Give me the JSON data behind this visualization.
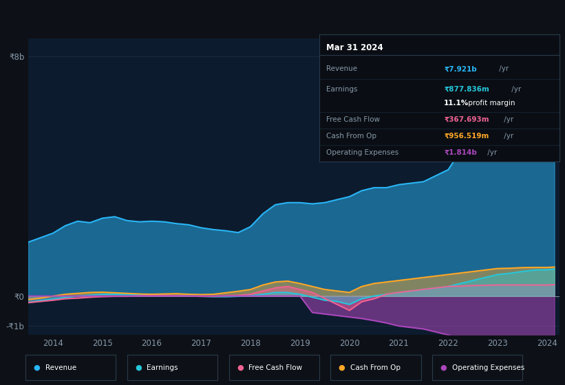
{
  "background_color": "#0d1117",
  "chart_bg_color": "#0d1b2e",
  "tooltip": {
    "date": "Mar 31 2024",
    "revenue_label": "Revenue",
    "revenue_val": "₹7.921b",
    "revenue_unit": " /yr",
    "earnings_label": "Earnings",
    "earnings_val": "₹877.836m",
    "earnings_unit": " /yr",
    "margin_val": "11.1%",
    "margin_text": " profit margin",
    "fcf_label": "Free Cash Flow",
    "fcf_val": "₹367.693m",
    "fcf_unit": " /yr",
    "cfop_label": "Cash From Op",
    "cfop_val": "₹956.519m",
    "cfop_unit": " /yr",
    "opex_label": "Operating Expenses",
    "opex_val": "₹1.814b",
    "opex_unit": " /yr"
  },
  "years": [
    2013.5,
    2013.75,
    2014.0,
    2014.25,
    2014.5,
    2014.75,
    2015.0,
    2015.25,
    2015.5,
    2015.75,
    2016.0,
    2016.25,
    2016.5,
    2016.75,
    2017.0,
    2017.25,
    2017.5,
    2017.75,
    2018.0,
    2018.25,
    2018.5,
    2018.75,
    2019.0,
    2019.25,
    2019.5,
    2019.75,
    2020.0,
    2020.25,
    2020.5,
    2020.75,
    2021.0,
    2021.25,
    2021.5,
    2021.75,
    2022.0,
    2022.25,
    2022.5,
    2022.75,
    2023.0,
    2023.25,
    2023.5,
    2023.75,
    2024.0,
    2024.15
  ],
  "revenue": [
    1.8,
    1.95,
    2.1,
    2.35,
    2.5,
    2.45,
    2.6,
    2.65,
    2.52,
    2.48,
    2.5,
    2.48,
    2.42,
    2.38,
    2.28,
    2.22,
    2.18,
    2.12,
    2.32,
    2.75,
    3.05,
    3.12,
    3.12,
    3.08,
    3.12,
    3.22,
    3.32,
    3.52,
    3.62,
    3.62,
    3.72,
    3.77,
    3.82,
    4.02,
    4.22,
    4.85,
    5.55,
    6.05,
    6.82,
    7.02,
    7.32,
    7.62,
    7.921,
    8.15
  ],
  "earnings": [
    -0.22,
    -0.15,
    -0.1,
    -0.05,
    0.0,
    0.03,
    0.06,
    0.06,
    0.05,
    0.04,
    0.03,
    0.02,
    0.01,
    0.0,
    -0.01,
    -0.02,
    -0.02,
    -0.01,
    0.01,
    0.06,
    0.12,
    0.12,
    0.06,
    -0.04,
    -0.14,
    -0.18,
    -0.28,
    -0.09,
    0.0,
    0.06,
    0.12,
    0.17,
    0.22,
    0.27,
    0.32,
    0.42,
    0.52,
    0.62,
    0.72,
    0.76,
    0.82,
    0.87,
    0.877836,
    0.9
  ],
  "free_cash_flow": [
    -0.22,
    -0.18,
    -0.14,
    -0.09,
    -0.07,
    -0.04,
    -0.02,
    -0.01,
    -0.01,
    0.01,
    0.02,
    0.02,
    0.01,
    0.0,
    -0.01,
    -0.01,
    0.01,
    0.02,
    0.06,
    0.17,
    0.27,
    0.32,
    0.22,
    0.12,
    -0.08,
    -0.28,
    -0.48,
    -0.19,
    -0.09,
    0.06,
    0.12,
    0.17,
    0.22,
    0.27,
    0.32,
    0.33,
    0.35,
    0.36,
    0.37,
    0.37,
    0.37,
    0.367693,
    0.367693,
    0.38
  ],
  "cash_from_op": [
    -0.12,
    -0.07,
    0.0,
    0.06,
    0.09,
    0.12,
    0.13,
    0.11,
    0.09,
    0.07,
    0.06,
    0.07,
    0.08,
    0.06,
    0.05,
    0.06,
    0.11,
    0.16,
    0.22,
    0.37,
    0.47,
    0.5,
    0.42,
    0.32,
    0.22,
    0.17,
    0.12,
    0.32,
    0.42,
    0.47,
    0.52,
    0.57,
    0.62,
    0.67,
    0.72,
    0.77,
    0.82,
    0.87,
    0.92,
    0.93,
    0.95,
    0.956519,
    0.956519,
    0.97
  ],
  "operating_expenses": [
    0.0,
    0.0,
    0.0,
    0.0,
    0.0,
    0.0,
    0.0,
    0.0,
    0.0,
    0.0,
    0.0,
    0.0,
    0.0,
    0.0,
    0.0,
    0.0,
    0.0,
    0.0,
    0.0,
    0.0,
    0.0,
    0.0,
    0.0,
    -0.55,
    -0.6,
    -0.65,
    -0.7,
    -0.75,
    -0.82,
    -0.9,
    -1.0,
    -1.05,
    -1.1,
    -1.2,
    -1.3,
    -1.38,
    -1.48,
    -1.58,
    -1.68,
    -1.75,
    -1.8,
    -1.814,
    -1.814,
    -1.85
  ],
  "colors": {
    "revenue": "#29b6f6",
    "earnings": "#26c6da",
    "free_cash_flow": "#f06292",
    "cash_from_op": "#ffa726",
    "operating_expenses": "#ab47bc"
  },
  "ylim": [
    -1.3,
    8.6
  ],
  "xlim": [
    2013.5,
    2024.25
  ],
  "ytick_vals": [
    -1.0,
    0.0,
    8.0
  ],
  "ytick_labels": [
    "-₹1b",
    "₹0",
    "₹8b"
  ],
  "xtick_vals": [
    2014,
    2015,
    2016,
    2017,
    2018,
    2019,
    2020,
    2021,
    2022,
    2023,
    2024
  ],
  "legend_items": [
    {
      "label": "Revenue",
      "color": "#29b6f6"
    },
    {
      "label": "Earnings",
      "color": "#26c6da"
    },
    {
      "label": "Free Cash Flow",
      "color": "#f06292"
    },
    {
      "label": "Cash From Op",
      "color": "#ffa726"
    },
    {
      "label": "Operating Expenses",
      "color": "#ab47bc"
    }
  ],
  "grid_color": "#1e2d3d",
  "zero_line_color": "#8899aa",
  "tick_color": "#8899aa",
  "label_color": "#8899aa",
  "tooltip_bg": "#0a0e14",
  "tooltip_border": "#2a3a4a",
  "tooltip_header_sep": "#2a3a4a",
  "tooltip_row_sep": "#1a2a3a",
  "legend_border": "#2a3a4a"
}
